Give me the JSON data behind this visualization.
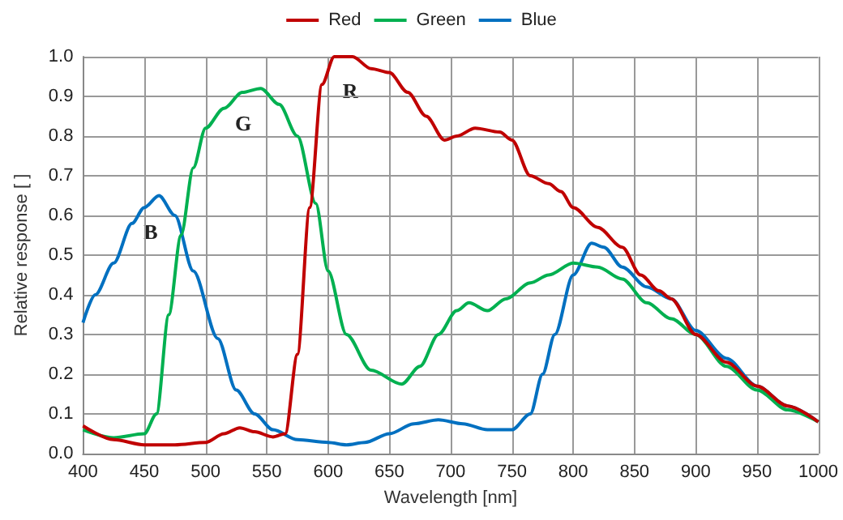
{
  "chart_data": {
    "type": "line",
    "xlabel": "Wavelength [nm]",
    "ylabel": "Relative response [ ]",
    "xlim": [
      400,
      1000
    ],
    "xticks": [
      400,
      450,
      500,
      550,
      600,
      650,
      700,
      750,
      800,
      850,
      900,
      950,
      1000
    ],
    "ylim": [
      0,
      1
    ],
    "yticks": [
      {
        "value": 0,
        "label": "0.0"
      },
      {
        "value": 0.1,
        "label": "0.1"
      },
      {
        "value": 0.2,
        "label": "0.2"
      },
      {
        "value": 0.3,
        "label": "0.3"
      },
      {
        "value": 0.4,
        "label": "0.4"
      },
      {
        "value": 0.5,
        "label": "0.5"
      },
      {
        "value": 0.6,
        "label": "0.6"
      },
      {
        "value": 0.7,
        "label": "0.7"
      },
      {
        "value": 0.8,
        "label": "0.8"
      },
      {
        "value": 0.9,
        "label": "0.9"
      },
      {
        "value": 1,
        "label": "1.0"
      }
    ],
    "grid": true,
    "legend": "top",
    "marker": "none",
    "line_style": "solid",
    "annotations": [
      "R",
      "G",
      "B"
    ],
    "series": [
      {
        "name": "Red",
        "color": "#c00000",
        "x": [
          400,
          425,
          450,
          475,
          500,
          515,
          528,
          540,
          555,
          565,
          575,
          585,
          595,
          605,
          620,
          635,
          650,
          665,
          680,
          695,
          705,
          720,
          740,
          750,
          765,
          780,
          790,
          800,
          820,
          840,
          855,
          870,
          880,
          900,
          925,
          950,
          975,
          1000
        ],
        "values": [
          0.07,
          0.035,
          0.022,
          0.022,
          0.028,
          0.05,
          0.065,
          0.055,
          0.042,
          0.05,
          0.25,
          0.62,
          0.93,
          1.0,
          1.0,
          0.97,
          0.96,
          0.91,
          0.85,
          0.79,
          0.8,
          0.82,
          0.81,
          0.79,
          0.7,
          0.68,
          0.66,
          0.62,
          0.57,
          0.52,
          0.45,
          0.41,
          0.39,
          0.3,
          0.23,
          0.17,
          0.12,
          0.08
        ]
      },
      {
        "name": "Green",
        "color": "#00b050",
        "x": [
          400,
          425,
          450,
          460,
          470,
          480,
          490,
          500,
          515,
          530,
          545,
          560,
          575,
          590,
          600,
          615,
          635,
          660,
          675,
          690,
          705,
          715,
          730,
          745,
          765,
          780,
          800,
          820,
          840,
          860,
          880,
          900,
          925,
          950,
          975,
          1000
        ],
        "values": [
          0.06,
          0.04,
          0.05,
          0.1,
          0.35,
          0.55,
          0.72,
          0.82,
          0.87,
          0.91,
          0.92,
          0.88,
          0.8,
          0.63,
          0.46,
          0.3,
          0.21,
          0.175,
          0.22,
          0.3,
          0.36,
          0.38,
          0.36,
          0.39,
          0.43,
          0.45,
          0.48,
          0.47,
          0.44,
          0.38,
          0.34,
          0.3,
          0.22,
          0.16,
          0.11,
          0.08
        ]
      },
      {
        "name": "Blue",
        "color": "#0070c0",
        "x": [
          400,
          410,
          425,
          440,
          450,
          462,
          475,
          490,
          510,
          525,
          540,
          555,
          575,
          600,
          615,
          630,
          650,
          670,
          690,
          710,
          730,
          750,
          765,
          775,
          785,
          800,
          815,
          825,
          840,
          860,
          880,
          900,
          925,
          950,
          975,
          1000
        ],
        "values": [
          0.33,
          0.4,
          0.48,
          0.58,
          0.62,
          0.65,
          0.6,
          0.46,
          0.29,
          0.16,
          0.1,
          0.06,
          0.035,
          0.028,
          0.022,
          0.028,
          0.05,
          0.075,
          0.085,
          0.075,
          0.06,
          0.06,
          0.1,
          0.2,
          0.3,
          0.45,
          0.53,
          0.52,
          0.47,
          0.42,
          0.39,
          0.31,
          0.24,
          0.17,
          0.12,
          0.08
        ]
      }
    ]
  }
}
